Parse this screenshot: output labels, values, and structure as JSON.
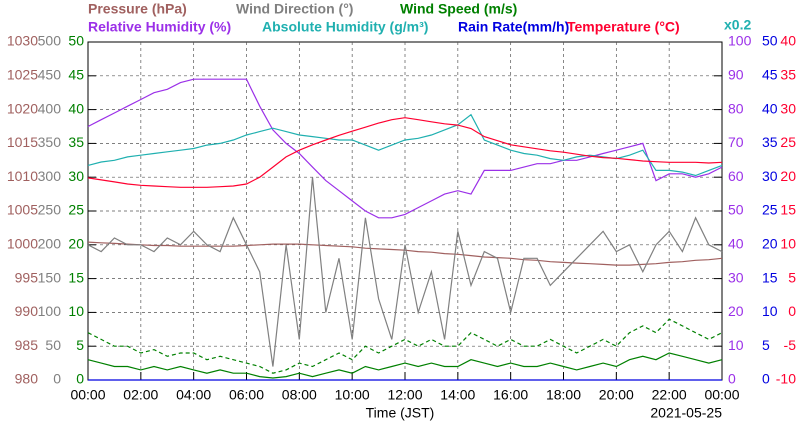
{
  "chart_data": {
    "type": "line",
    "x_label": "Time (JST)",
    "date": "2021-05-25",
    "grid": true,
    "x": [
      0,
      0.5,
      1,
      1.5,
      2,
      2.5,
      3,
      3.5,
      4,
      4.5,
      5,
      5.5,
      6,
      6.5,
      7,
      7.5,
      8,
      8.5,
      9,
      9.5,
      10,
      10.5,
      11,
      11.5,
      12,
      12.5,
      13,
      13.5,
      14,
      14.5,
      15,
      15.5,
      16,
      16.5,
      17,
      17.5,
      18,
      18.5,
      19,
      19.5,
      20,
      20.5,
      21,
      21.5,
      22,
      22.5,
      23,
      23.5,
      24
    ],
    "xlim": [
      0,
      24
    ],
    "xticks": [
      {
        "value": 0,
        "label": "00:00"
      },
      {
        "value": 2,
        "label": "02:00"
      },
      {
        "value": 4,
        "label": "04:00"
      },
      {
        "value": 6,
        "label": "06:00"
      },
      {
        "value": 8,
        "label": "08:00"
      },
      {
        "value": 10,
        "label": "10:00"
      },
      {
        "value": 12,
        "label": "12:00"
      },
      {
        "value": 14,
        "label": "14:00"
      },
      {
        "value": 16,
        "label": "16:00"
      },
      {
        "value": 18,
        "label": "18:00"
      },
      {
        "value": 20,
        "label": "20:00"
      },
      {
        "value": 22,
        "label": "22:00"
      },
      {
        "value": 24,
        "label": "00:00"
      }
    ],
    "axes": [
      {
        "name": "Pressure (hPa)",
        "color": "#a0605f",
        "side": "left",
        "ylim": [
          980,
          1030
        ],
        "yticks": [
          980,
          985,
          990,
          995,
          1000,
          1005,
          1010,
          1015,
          1020,
          1025,
          1030
        ],
        "series": [
          {
            "values": [
              1000.4,
              1000.3,
              1000.2,
              1000.1,
              1000,
              999.9,
              999.9,
              999.8,
              999.8,
              999.8,
              999.8,
              999.8,
              999.9,
              1000,
              1000.1,
              1000.1,
              1000.1,
              1000,
              999.9,
              999.8,
              999.7,
              999.5,
              999.4,
              999.3,
              999.2,
              999,
              998.9,
              998.7,
              998.6,
              998.4,
              998.2,
              998.1,
              998,
              997.8,
              997.7,
              997.5,
              997.4,
              997.3,
              997.2,
              997.1,
              997,
              997,
              997.1,
              997.2,
              997.4,
              997.5,
              997.7,
              997.8,
              998
            ]
          }
        ]
      },
      {
        "name": "Wind Direction (°)",
        "color": "#808080",
        "side": "left",
        "ylim": [
          0,
          500
        ],
        "yticks": [
          0,
          50,
          100,
          150,
          200,
          250,
          300,
          350,
          400,
          450,
          500
        ],
        "series": [
          {
            "values": [
              200,
              190,
              210,
              200,
              200,
              190,
              210,
              200,
              220,
              200,
              190,
              240,
              200,
              160,
              20,
              200,
              60,
              300,
              100,
              180,
              60,
              240,
              120,
              60,
              200,
              100,
              160,
              60,
              220,
              140,
              190,
              180,
              100,
              180,
              180,
              140,
              160,
              180,
              200,
              220,
              190,
              200,
              160,
              200,
              220,
              190,
              240,
              200,
              190
            ]
          }
        ]
      },
      {
        "name": "Wind Speed (m/s)",
        "color": "#008000",
        "side": "left",
        "ylim": [
          0,
          50
        ],
        "yticks": [
          0,
          5,
          10,
          15,
          20,
          25,
          30,
          35,
          40,
          45,
          50
        ],
        "series": [
          {
            "values": [
              3,
              2.5,
              2,
              2,
              1.5,
              2,
              1.5,
              2,
              1.5,
              1,
              1.5,
              1,
              1,
              0.5,
              0.3,
              0.5,
              1,
              0.5,
              1,
              1.5,
              1,
              2,
              1.5,
              2,
              2.5,
              2,
              2.5,
              2,
              2,
              3,
              2.5,
              2,
              2.5,
              2,
              2,
              2.5,
              2,
              1.5,
              2,
              2.5,
              2,
              3,
              3.5,
              3,
              4,
              3.5,
              3,
              2.5,
              3
            ]
          },
          {
            "values": [
              7,
              6,
              5,
              5,
              4,
              4.5,
              3.5,
              4,
              4,
              3,
              3.5,
              3,
              2.5,
              2,
              1,
              1.5,
              2.5,
              2,
              3,
              4,
              3,
              5,
              4,
              5,
              6,
              5,
              6,
              5,
              5,
              7,
              6,
              5,
              6,
              5,
              5,
              6,
              5,
              4,
              5,
              6,
              5,
              7,
              8,
              7,
              9,
              8,
              7,
              6,
              7
            ],
            "dash": true
          }
        ]
      },
      {
        "name": "Relative Humidity (%)",
        "color": "#9b30e8",
        "side": "right",
        "ylim": [
          0,
          100
        ],
        "yticks": [
          0,
          10,
          20,
          30,
          40,
          50,
          60,
          70,
          80,
          90,
          100
        ],
        "series": [
          {
            "values": [
              75,
              77,
              79,
              81,
              83,
              85,
              86,
              88,
              89,
              89,
              89,
              89,
              89,
              81,
              74,
              70,
              67,
              63,
              59,
              56,
              53,
              50,
              48,
              48,
              49,
              51,
              53,
              55,
              56,
              55,
              62,
              62,
              62,
              63,
              64,
              64,
              65,
              65,
              66,
              67,
              68,
              69,
              70,
              59,
              61,
              61,
              60,
              61,
              63
            ]
          }
        ]
      },
      {
        "name": "Absolute Humidity (g/m³)",
        "color": "#20b0b0",
        "side": "none",
        "ylim": [
          0,
          20
        ],
        "multiplier_label": "x0.2",
        "series": [
          {
            "values": [
              12.7,
              12.9,
              13,
              13.2,
              13.3,
              13.4,
              13.5,
              13.6,
              13.7,
              13.9,
              14,
              14.2,
              14.5,
              14.7,
              14.9,
              14.7,
              14.5,
              14.4,
              14.3,
              14.2,
              14.2,
              13.9,
              13.6,
              13.9,
              14.2,
              14.3,
              14.5,
              14.8,
              15.1,
              15.7,
              14.2,
              13.9,
              13.6,
              13.4,
              13.3,
              13.1,
              13,
              13.2,
              13.3,
              13.2,
              13.1,
              13.3,
              13.6,
              12.4,
              12.4,
              12.3,
              12.1,
              12.4,
              12.7
            ]
          }
        ]
      },
      {
        "name": "Rain Rate(mm/h)",
        "color": "#0000e0",
        "side": "right",
        "ylim": [
          0,
          50
        ],
        "yticks": [
          0,
          5,
          10,
          15,
          20,
          25,
          30,
          35,
          40,
          45,
          50
        ],
        "series": [
          {
            "values": [
              0,
              0,
              0,
              0,
              0,
              0,
              0,
              0,
              0,
              0,
              0,
              0,
              0,
              0,
              0,
              0,
              0,
              0,
              0,
              0,
              0,
              0,
              0,
              0,
              0,
              0,
              0,
              0,
              0,
              0,
              0,
              0,
              0,
              0,
              0,
              0,
              0,
              0,
              0,
              0,
              0,
              0,
              0,
              0,
              0,
              0,
              0,
              0,
              0
            ]
          }
        ]
      },
      {
        "name": "Temperature (°C)",
        "color": "#ff0030",
        "side": "right",
        "ylim": [
          -10,
          40
        ],
        "yticks": [
          -10,
          -5,
          0,
          5,
          10,
          15,
          20,
          25,
          30,
          35,
          40
        ],
        "series": [
          {
            "values": [
              19.9,
              19.6,
              19.3,
              19,
              18.8,
              18.7,
              18.6,
              18.5,
              18.5,
              18.5,
              18.6,
              18.7,
              19,
              20,
              21.5,
              23,
              24,
              24.8,
              25.5,
              26.2,
              26.8,
              27.4,
              28,
              28.5,
              28.8,
              28.5,
              28.2,
              27.9,
              27.7,
              27.2,
              26,
              25.4,
              24.8,
              24.5,
              24.2,
              23.9,
              23.7,
              23.4,
              23.1,
              22.9,
              22.8,
              22.6,
              22.4,
              22.3,
              22.2,
              22.2,
              22.2,
              22.1,
              22.2
            ]
          }
        ]
      }
    ]
  }
}
